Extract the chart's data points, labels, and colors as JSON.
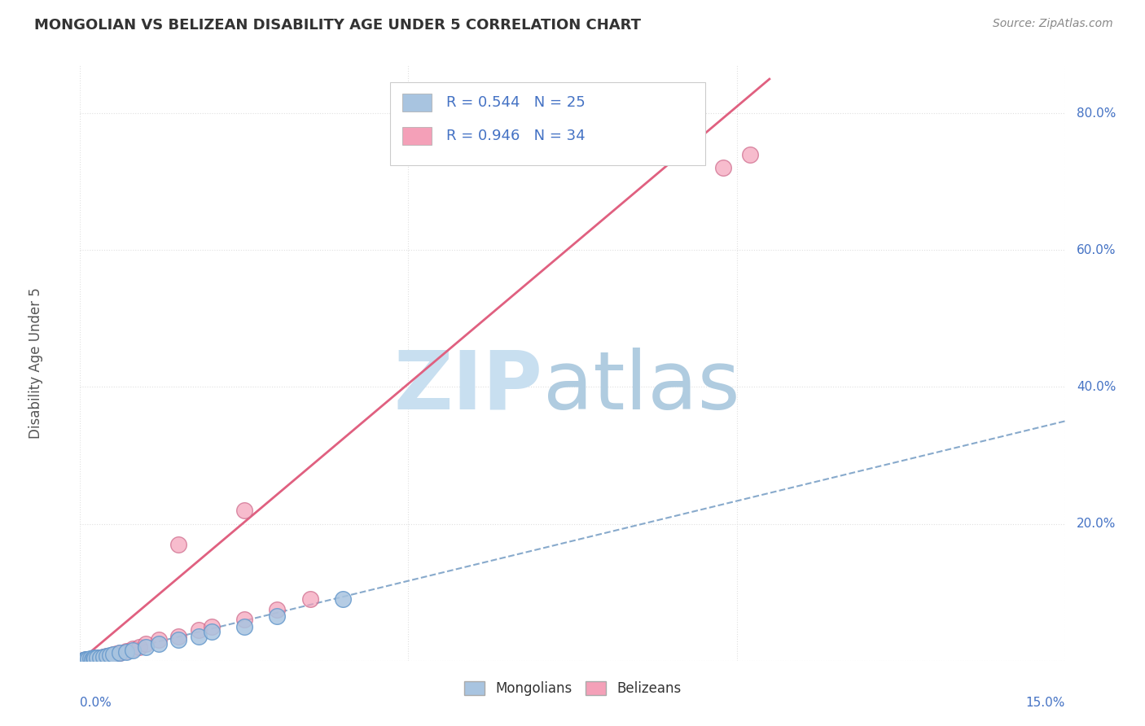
{
  "title": "MONGOLIAN VS BELIZEAN DISABILITY AGE UNDER 5 CORRELATION CHART",
  "source": "Source: ZipAtlas.com",
  "ylabel": "Disability Age Under 5",
  "xlim": [
    0.0,
    15.0
  ],
  "ylim": [
    0.0,
    87.0
  ],
  "mongolian_color": "#a8c4e0",
  "mongolian_edge_color": "#6699cc",
  "belizean_color": "#f4a0b8",
  "belizean_edge_color": "#cc6688",
  "mongolian_line_color": "#88aacc",
  "belizean_line_color": "#e06080",
  "mongolian_R": 0.544,
  "mongolian_N": 25,
  "belizean_R": 0.946,
  "belizean_N": 34,
  "axis_label_color": "#4472c4",
  "watermark_zip_color": "#c8dff0",
  "watermark_atlas_color": "#b0cce0",
  "background_color": "#ffffff",
  "grid_color": "#e0e0e0",
  "mongolian_scatter": [
    [
      0.05,
      0.1
    ],
    [
      0.08,
      0.15
    ],
    [
      0.1,
      0.2
    ],
    [
      0.12,
      0.18
    ],
    [
      0.15,
      0.3
    ],
    [
      0.18,
      0.25
    ],
    [
      0.2,
      0.4
    ],
    [
      0.22,
      0.35
    ],
    [
      0.25,
      0.5
    ],
    [
      0.3,
      0.45
    ],
    [
      0.35,
      0.6
    ],
    [
      0.4,
      0.7
    ],
    [
      0.45,
      0.8
    ],
    [
      0.5,
      0.9
    ],
    [
      0.6,
      1.1
    ],
    [
      0.7,
      1.3
    ],
    [
      0.8,
      1.5
    ],
    [
      1.0,
      2.0
    ],
    [
      1.2,
      2.5
    ],
    [
      1.5,
      3.0
    ],
    [
      1.8,
      3.5
    ],
    [
      2.0,
      4.2
    ],
    [
      2.5,
      5.0
    ],
    [
      3.0,
      6.5
    ],
    [
      4.0,
      9.0
    ]
  ],
  "belizean_scatter": [
    [
      0.05,
      0.05
    ],
    [
      0.08,
      0.1
    ],
    [
      0.1,
      0.15
    ],
    [
      0.12,
      0.2
    ],
    [
      0.15,
      0.25
    ],
    [
      0.18,
      0.3
    ],
    [
      0.2,
      0.35
    ],
    [
      0.25,
      0.4
    ],
    [
      0.28,
      0.45
    ],
    [
      0.3,
      0.5
    ],
    [
      0.35,
      0.6
    ],
    [
      0.4,
      0.7
    ],
    [
      0.5,
      0.9
    ],
    [
      0.55,
      1.0
    ],
    [
      0.6,
      1.2
    ],
    [
      0.7,
      1.4
    ],
    [
      0.8,
      1.8
    ],
    [
      0.9,
      2.0
    ],
    [
      1.0,
      2.5
    ],
    [
      1.2,
      3.0
    ],
    [
      1.5,
      3.5
    ],
    [
      1.8,
      4.5
    ],
    [
      2.0,
      5.0
    ],
    [
      2.5,
      6.0
    ],
    [
      3.0,
      7.5
    ],
    [
      3.5,
      9.0
    ],
    [
      1.5,
      17.0
    ],
    [
      2.5,
      22.0
    ],
    [
      9.8,
      72.0
    ],
    [
      10.2,
      74.0
    ]
  ],
  "belizean_isolated": [
    [
      1.5,
      17.0
    ],
    [
      2.5,
      22.0
    ],
    [
      9.8,
      72.0
    ],
    [
      10.2,
      74.0
    ]
  ],
  "belizean_line_x": [
    0.0,
    10.5
  ],
  "belizean_line_y": [
    0.0,
    85.0
  ],
  "mongolian_line_x": [
    0.0,
    15.0
  ],
  "mongolian_line_y": [
    0.0,
    35.0
  ]
}
